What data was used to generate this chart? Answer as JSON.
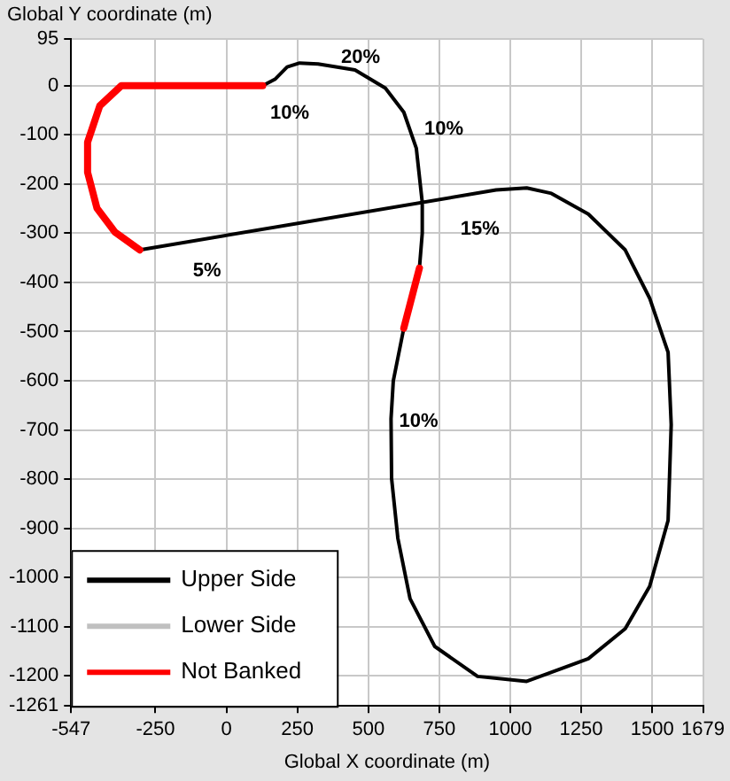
{
  "chart_data": {
    "type": "line",
    "xlabel": "Global X coordinate (m)",
    "ylabel": "Global Y coordinate (m)",
    "xlim": [
      -547,
      1679
    ],
    "xticks": [
      -547,
      -250,
      0,
      250,
      500,
      750,
      1000,
      1250,
      1500,
      1679
    ],
    "ylim": [
      -1261,
      95
    ],
    "yticks": [
      95,
      0,
      -100,
      -200,
      -300,
      -400,
      -500,
      -600,
      -700,
      -800,
      -900,
      -1000,
      -1100,
      -1200,
      -1261
    ],
    "grid": true,
    "legend": "bottom left",
    "marker": "none",
    "line_style": "solid",
    "series": [
      {
        "name": "Upper Side",
        "color": "#000000",
        "x": [
          -305,
          950,
          1058,
          1145,
          1275,
          1405,
          1491,
          1556,
          1567,
          1556,
          1491,
          1405,
          1275,
          1058,
          885,
          734,
          647,
          604,
          582,
          580,
          588,
          625,
          650,
          680,
          690,
          690,
          669,
          625,
          560,
          453,
          323,
          258,
          214,
          171,
          128
        ],
        "values": [
          -334,
          -212,
          -208,
          -219,
          -261,
          -334,
          -432,
          -542,
          -689,
          -884,
          -1018,
          -1104,
          -1165,
          -1211,
          -1201,
          -1140,
          -1043,
          -920,
          -799,
          -677,
          -600,
          -493,
          null,
          -371,
          -300,
          -237,
          -127,
          -54,
          -5,
          32,
          44,
          46,
          38,
          13,
          0
        ]
      },
      {
        "name": "Lower Side",
        "color": "#c0c0c0"
      },
      {
        "name": "Not Banked",
        "color": "#ff0000",
        "x": [
          128,
          -370,
          -446,
          -489,
          -489,
          -456,
          -392,
          -305,
          0,
          625,
          680
        ],
        "values": [
          0,
          0,
          -41,
          -115,
          -176,
          -249,
          -298,
          -334,
          null,
          -493,
          -371
        ]
      }
    ],
    "annotations": [
      "20%",
      "10%",
      "10%",
      "15%",
      "5%",
      "10%"
    ]
  }
}
